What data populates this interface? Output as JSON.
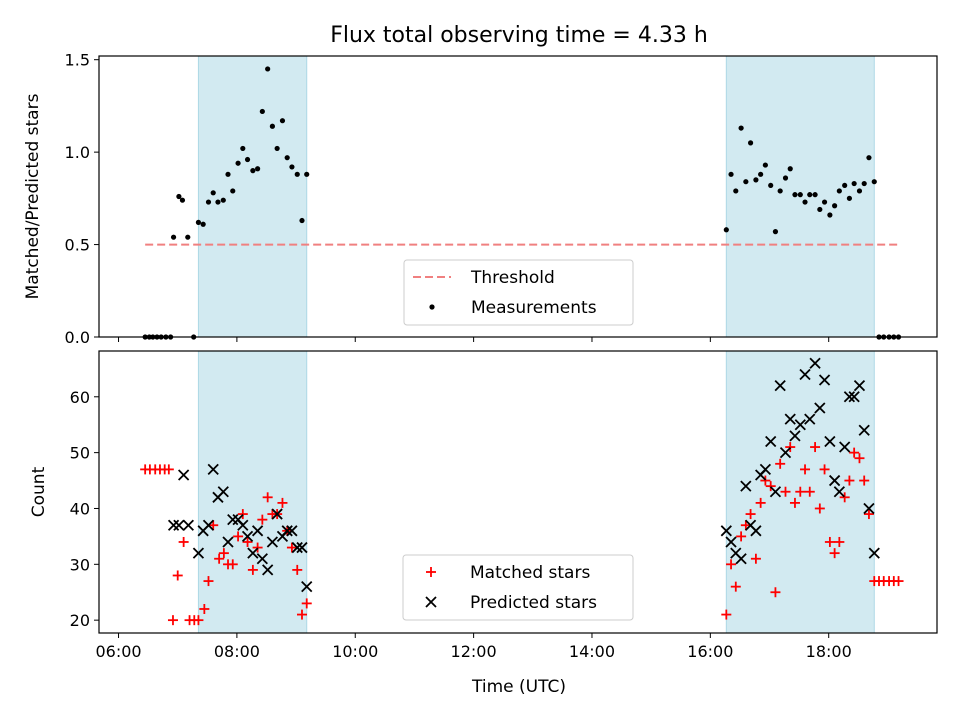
{
  "figure": {
    "title": "Flux total observing time = 4.33 h",
    "xlabel": "Time (UTC)",
    "x_ticks": [
      "06:00",
      "08:00",
      "10:00",
      "12:00",
      "14:00",
      "16:00",
      "18:00"
    ]
  },
  "colors": {
    "shade": "#add8e6",
    "threshold": "#f08080",
    "matched": "#ff0000",
    "predicted": "#000000",
    "measurement": "#000000"
  },
  "chart_data": [
    {
      "type": "scatter",
      "title": "Flux total observing time = 4.33 h",
      "xlabel": "",
      "ylabel": "Matched/Predicted stars",
      "xlim": [
        5.67,
        19.83
      ],
      "ylim": [
        0,
        1.52
      ],
      "y_ticks": [
        "0.0",
        "0.5",
        "1.0",
        "1.5"
      ],
      "legend_position": "lower center",
      "observing_windows": [
        [
          7.35,
          9.18
        ],
        [
          16.27,
          18.77
        ]
      ],
      "threshold": {
        "name": "Threshold",
        "value": 0.5,
        "x_range": [
          6.45,
          19.2
        ]
      },
      "series": [
        {
          "name": "Measurements",
          "points": [
            [
              6.45,
              0
            ],
            [
              6.52,
              0
            ],
            [
              6.58,
              0
            ],
            [
              6.65,
              0
            ],
            [
              6.72,
              0
            ],
            [
              6.8,
              0
            ],
            [
              6.88,
              0
            ],
            [
              7.27,
              0
            ],
            [
              6.93,
              0.54
            ],
            [
              7.02,
              0.76
            ],
            [
              7.08,
              0.74
            ],
            [
              7.17,
              0.54
            ],
            [
              7.35,
              0.62
            ],
            [
              7.43,
              0.61
            ],
            [
              7.52,
              0.73
            ],
            [
              7.6,
              0.78
            ],
            [
              7.68,
              0.73
            ],
            [
              7.77,
              0.74
            ],
            [
              7.85,
              0.88
            ],
            [
              7.93,
              0.79
            ],
            [
              8.02,
              0.94
            ],
            [
              8.1,
              1.02
            ],
            [
              8.18,
              0.96
            ],
            [
              8.27,
              0.9
            ],
            [
              8.35,
              0.91
            ],
            [
              8.43,
              1.22
            ],
            [
              8.52,
              1.45
            ],
            [
              8.6,
              1.14
            ],
            [
              8.68,
              1.02
            ],
            [
              8.77,
              1.17
            ],
            [
              8.85,
              0.97
            ],
            [
              8.93,
              0.92
            ],
            [
              9.02,
              0.88
            ],
            [
              9.1,
              0.63
            ],
            [
              9.18,
              0.88
            ],
            [
              16.27,
              0.58
            ],
            [
              16.35,
              0.88
            ],
            [
              16.43,
              0.79
            ],
            [
              16.52,
              1.13
            ],
            [
              16.6,
              0.84
            ],
            [
              16.68,
              1.05
            ],
            [
              16.77,
              0.85
            ],
            [
              16.85,
              0.88
            ],
            [
              16.93,
              0.93
            ],
            [
              17.02,
              0.82
            ],
            [
              17.1,
              0.57
            ],
            [
              17.18,
              0.79
            ],
            [
              17.27,
              0.86
            ],
            [
              17.35,
              0.91
            ],
            [
              17.43,
              0.77
            ],
            [
              17.52,
              0.77
            ],
            [
              17.6,
              0.73
            ],
            [
              17.68,
              0.77
            ],
            [
              17.77,
              0.77
            ],
            [
              17.85,
              0.69
            ],
            [
              17.93,
              0.73
            ],
            [
              18.02,
              0.66
            ],
            [
              18.1,
              0.71
            ],
            [
              18.18,
              0.79
            ],
            [
              18.27,
              0.82
            ],
            [
              18.35,
              0.75
            ],
            [
              18.43,
              0.83
            ],
            [
              18.52,
              0.79
            ],
            [
              18.6,
              0.83
            ],
            [
              18.68,
              0.97
            ],
            [
              18.77,
              0.84
            ],
            [
              18.85,
              0
            ],
            [
              18.93,
              0
            ],
            [
              19.02,
              0
            ],
            [
              19.1,
              0
            ],
            [
              19.18,
              0
            ]
          ]
        }
      ]
    },
    {
      "type": "scatter",
      "title": "",
      "xlabel": "Time (UTC)",
      "ylabel": "Count",
      "xlim": [
        5.67,
        19.83
      ],
      "ylim": [
        17.7,
        68.2
      ],
      "y_ticks": [
        "20",
        "30",
        "40",
        "50",
        "60"
      ],
      "legend_position": "lower center",
      "observing_windows": [
        [
          7.35,
          9.18
        ],
        [
          16.27,
          18.77
        ]
      ],
      "series": [
        {
          "name": "Matched stars",
          "marker": "plus",
          "points": [
            [
              6.45,
              47
            ],
            [
              6.53,
              47
            ],
            [
              6.62,
              47
            ],
            [
              6.7,
              47
            ],
            [
              6.78,
              47
            ],
            [
              6.85,
              47
            ],
            [
              6.92,
              20
            ],
            [
              7.0,
              28
            ],
            [
              7.1,
              34
            ],
            [
              7.2,
              20
            ],
            [
              7.28,
              20
            ],
            [
              7.35,
              20
            ],
            [
              7.45,
              22
            ],
            [
              7.52,
              27
            ],
            [
              7.6,
              37
            ],
            [
              7.7,
              31
            ],
            [
              7.78,
              32
            ],
            [
              7.85,
              30
            ],
            [
              7.93,
              30
            ],
            [
              8.02,
              35
            ],
            [
              8.1,
              39
            ],
            [
              8.18,
              34
            ],
            [
              8.27,
              29
            ],
            [
              8.35,
              33
            ],
            [
              8.43,
              38
            ],
            [
              8.52,
              42
            ],
            [
              8.6,
              39
            ],
            [
              8.68,
              39
            ],
            [
              8.77,
              41
            ],
            [
              8.85,
              36
            ],
            [
              8.93,
              33
            ],
            [
              9.02,
              29
            ],
            [
              9.1,
              21
            ],
            [
              9.18,
              23
            ],
            [
              16.27,
              21
            ],
            [
              16.35,
              30
            ],
            [
              16.43,
              26
            ],
            [
              16.52,
              35
            ],
            [
              16.6,
              37
            ],
            [
              16.68,
              39
            ],
            [
              16.77,
              31
            ],
            [
              16.85,
              41
            ],
            [
              16.93,
              45
            ],
            [
              17.02,
              44
            ],
            [
              17.1,
              25
            ],
            [
              17.18,
              48
            ],
            [
              17.27,
              43
            ],
            [
              17.35,
              51
            ],
            [
              17.43,
              41
            ],
            [
              17.52,
              43
            ],
            [
              17.6,
              47
            ],
            [
              17.68,
              43
            ],
            [
              17.77,
              51
            ],
            [
              17.85,
              40
            ],
            [
              17.93,
              47
            ],
            [
              18.02,
              34
            ],
            [
              18.1,
              32
            ],
            [
              18.18,
              34
            ],
            [
              18.27,
              42
            ],
            [
              18.35,
              45
            ],
            [
              18.43,
              50
            ],
            [
              18.52,
              49
            ],
            [
              18.6,
              45
            ],
            [
              18.68,
              39
            ],
            [
              18.77,
              27
            ],
            [
              18.85,
              27
            ],
            [
              18.93,
              27
            ],
            [
              19.02,
              27
            ],
            [
              19.1,
              27
            ],
            [
              19.18,
              27
            ]
          ]
        },
        {
          "name": "Predicted stars",
          "marker": "x",
          "points": [
            [
              6.93,
              37
            ],
            [
              7.02,
              37
            ],
            [
              7.1,
              46
            ],
            [
              7.18,
              37
            ],
            [
              7.35,
              32
            ],
            [
              7.43,
              36
            ],
            [
              7.52,
              37
            ],
            [
              7.6,
              47
            ],
            [
              7.68,
              42
            ],
            [
              7.77,
              43
            ],
            [
              7.85,
              34
            ],
            [
              7.93,
              38
            ],
            [
              8.02,
              38
            ],
            [
              8.1,
              37
            ],
            [
              8.18,
              35
            ],
            [
              8.27,
              32
            ],
            [
              8.35,
              36
            ],
            [
              8.43,
              31
            ],
            [
              8.52,
              29
            ],
            [
              8.6,
              34
            ],
            [
              8.68,
              39
            ],
            [
              8.77,
              35
            ],
            [
              8.85,
              36
            ],
            [
              8.93,
              36
            ],
            [
              9.02,
              33
            ],
            [
              9.1,
              33
            ],
            [
              9.18,
              26
            ],
            [
              16.27,
              36
            ],
            [
              16.35,
              34
            ],
            [
              16.43,
              32
            ],
            [
              16.52,
              31
            ],
            [
              16.6,
              44
            ],
            [
              16.68,
              37
            ],
            [
              16.77,
              36
            ],
            [
              16.85,
              46
            ],
            [
              16.93,
              47
            ],
            [
              17.02,
              52
            ],
            [
              17.1,
              43
            ],
            [
              17.18,
              62
            ],
            [
              17.27,
              50
            ],
            [
              17.35,
              56
            ],
            [
              17.43,
              53
            ],
            [
              17.52,
              55
            ],
            [
              17.6,
              64
            ],
            [
              17.68,
              56
            ],
            [
              17.77,
              66
            ],
            [
              17.85,
              58
            ],
            [
              17.93,
              63
            ],
            [
              18.02,
              52
            ],
            [
              18.1,
              45
            ],
            [
              18.18,
              43
            ],
            [
              18.27,
              51
            ],
            [
              18.35,
              60
            ],
            [
              18.43,
              60
            ],
            [
              18.52,
              62
            ],
            [
              18.6,
              54
            ],
            [
              18.68,
              40
            ],
            [
              18.77,
              32
            ]
          ]
        }
      ]
    }
  ]
}
